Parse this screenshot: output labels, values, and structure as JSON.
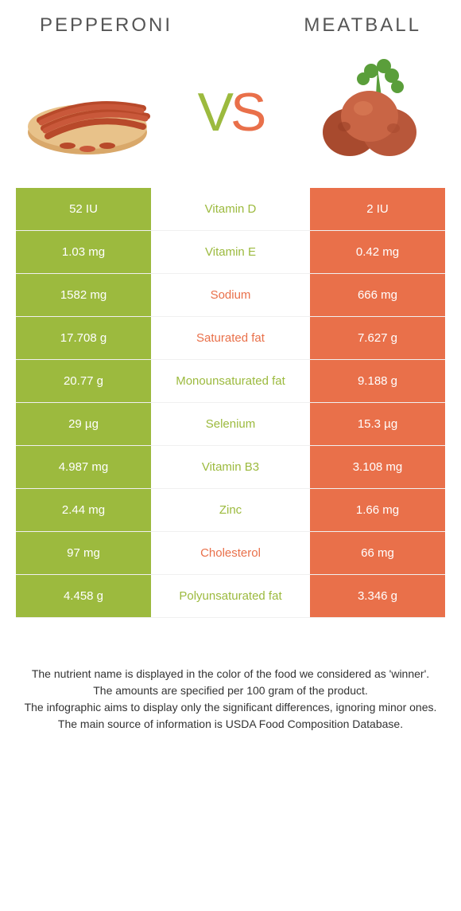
{
  "header": {
    "left_title": "PEPPERONI",
    "right_title": "MEATBALL"
  },
  "colors": {
    "left": "#9cba3e",
    "right": "#e9704a",
    "text": "#555555"
  },
  "vs": {
    "v": "V",
    "s": "S"
  },
  "rows": [
    {
      "left": "52 IU",
      "label": "Vitamin D",
      "winner": "left",
      "right": "2 IU"
    },
    {
      "left": "1.03 mg",
      "label": "Vitamin E",
      "winner": "left",
      "right": "0.42 mg"
    },
    {
      "left": "1582 mg",
      "label": "Sodium",
      "winner": "right",
      "right": "666 mg"
    },
    {
      "left": "17.708 g",
      "label": "Saturated fat",
      "winner": "right",
      "right": "7.627 g"
    },
    {
      "left": "20.77 g",
      "label": "Monounsaturated fat",
      "winner": "left",
      "right": "9.188 g"
    },
    {
      "left": "29 µg",
      "label": "Selenium",
      "winner": "left",
      "right": "15.3 µg"
    },
    {
      "left": "4.987 mg",
      "label": "Vitamin B3",
      "winner": "left",
      "right": "3.108 mg"
    },
    {
      "left": "2.44 mg",
      "label": "Zinc",
      "winner": "left",
      "right": "1.66 mg"
    },
    {
      "left": "97 mg",
      "label": "Cholesterol",
      "winner": "right",
      "right": "66 mg"
    },
    {
      "left": "4.458 g",
      "label": "Polyunsaturated fat",
      "winner": "left",
      "right": "3.346 g"
    }
  ],
  "footer": {
    "line1": "The nutrient name is displayed in the color of the food we considered as 'winner'.",
    "line2": "The amounts are specified per 100 gram of the product.",
    "line3": "The infographic aims to display only the significant differences, ignoring minor ones.",
    "line4": "The main source of information is USDA Food Composition Database."
  }
}
